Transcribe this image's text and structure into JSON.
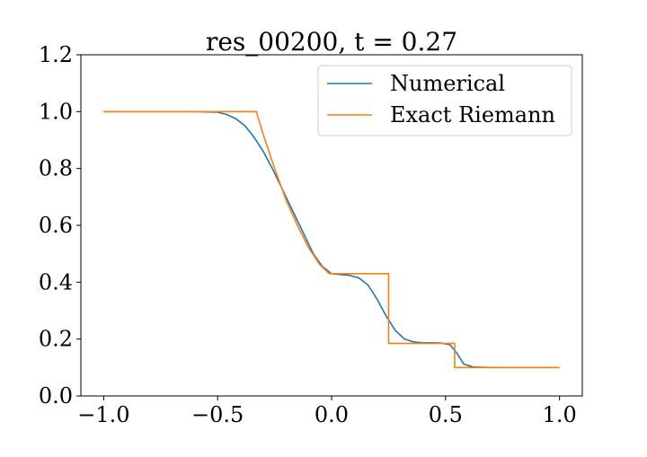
{
  "chart_data": {
    "type": "line",
    "title": "res_00200, t = 0.27",
    "xlabel": "",
    "ylabel": "",
    "xlim": [
      -1.1,
      1.1
    ],
    "ylim": [
      0.0,
      1.2
    ],
    "xticks": [
      -1.0,
      -0.5,
      0.0,
      0.5,
      1.0
    ],
    "xtick_labels": [
      "−1.0",
      "−0.5",
      "0.0",
      "0.5",
      "1.0"
    ],
    "yticks": [
      0.0,
      0.2,
      0.4,
      0.6,
      0.8,
      1.0,
      1.2
    ],
    "ytick_labels": [
      "0.0",
      "0.2",
      "0.4",
      "0.6",
      "0.8",
      "1.0",
      "1.2"
    ],
    "grid": false,
    "legend_position": "top-right",
    "series": [
      {
        "name": "Numerical",
        "color": "#1f77b4",
        "x": [
          -1.0,
          -0.6,
          -0.5,
          -0.46,
          -0.42,
          -0.38,
          -0.34,
          -0.3,
          -0.26,
          -0.2,
          -0.14,
          -0.08,
          -0.04,
          0.0,
          0.04,
          0.08,
          0.12,
          0.16,
          0.2,
          0.24,
          0.28,
          0.32,
          0.36,
          0.4,
          0.44,
          0.48,
          0.52,
          0.55,
          0.58,
          0.62,
          0.7,
          1.0
        ],
        "y": [
          1.0,
          1.0,
          0.998,
          0.99,
          0.975,
          0.95,
          0.91,
          0.86,
          0.8,
          0.7,
          0.6,
          0.5,
          0.455,
          0.43,
          0.427,
          0.424,
          0.415,
          0.39,
          0.34,
          0.28,
          0.23,
          0.2,
          0.19,
          0.187,
          0.187,
          0.186,
          0.18,
          0.15,
          0.112,
          0.102,
          0.1,
          0.1
        ]
      },
      {
        "name": "Exact Riemann",
        "color": "#ff7f0e",
        "x": [
          -1.0,
          -0.33,
          -0.3,
          -0.25,
          -0.2,
          -0.15,
          -0.1,
          -0.05,
          -0.01,
          0.0,
          0.25,
          0.25,
          0.54,
          0.54,
          1.0
        ],
        "y": [
          1.0,
          1.0,
          0.92,
          0.8,
          0.69,
          0.6,
          0.52,
          0.46,
          0.43,
          0.43,
          0.43,
          0.185,
          0.185,
          0.1,
          0.1
        ]
      }
    ]
  }
}
